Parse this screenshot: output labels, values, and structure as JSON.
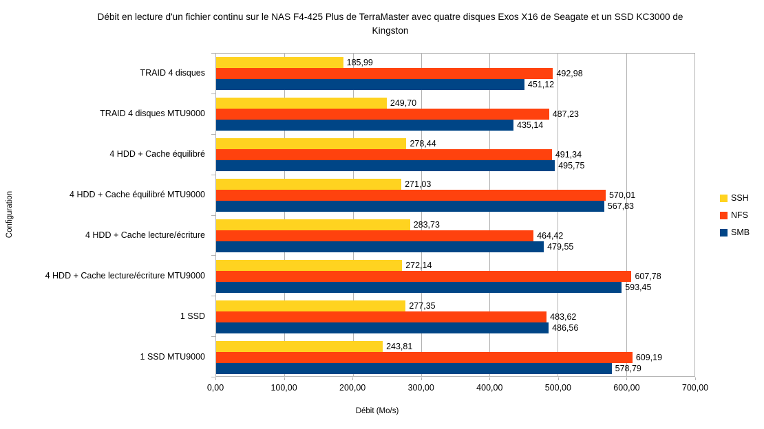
{
  "chart_data": {
    "type": "bar",
    "orientation": "horizontal",
    "title": "Débit en lecture d'un fichier continu sur le NAS F4-425 Plus de TerraMaster avec quatre disques Exos X16 de Seagate et un SSD KC3000 de Kingston",
    "xlabel": "Débit (Mo/s)",
    "ylabel": "Configuration",
    "xlim": [
      0,
      700
    ],
    "x_tick_values": [
      0,
      100,
      200,
      300,
      400,
      500,
      600,
      700
    ],
    "x_tick_labels": [
      "0,00",
      "100,00",
      "200,00",
      "300,00",
      "400,00",
      "500,00",
      "600,00",
      "700,00"
    ],
    "grid": true,
    "legend_position": "right",
    "categories": [
      "TRAID 4 disques",
      "TRAID 4 disques MTU9000",
      "4 HDD + Cache équilibré",
      "4 HDD + Cache équilibré MTU9000",
      "4 HDD + Cache lecture/écriture",
      "4 HDD + Cache lecture/écriture  MTU9000",
      "1 SSD",
      "1 SSD MTU9000"
    ],
    "series": [
      {
        "name": "SSH",
        "color": "#FFD320",
        "values": [
          185.99,
          249.7,
          278.44,
          271.03,
          283.73,
          272.14,
          277.35,
          243.81
        ],
        "labels": [
          "185,99",
          "249,70",
          "278,44",
          "271,03",
          "283,73",
          "272,14",
          "277,35",
          "243,81"
        ]
      },
      {
        "name": "NFS",
        "color": "#FF420E",
        "values": [
          492.98,
          487.23,
          491.34,
          570.01,
          464.42,
          607.78,
          483.62,
          609.19
        ],
        "labels": [
          "492,98",
          "487,23",
          "491,34",
          "570,01",
          "464,42",
          "607,78",
          "483,62",
          "609,19"
        ]
      },
      {
        "name": "SMB",
        "color": "#004586",
        "values": [
          451.12,
          435.14,
          495.75,
          567.83,
          479.55,
          593.45,
          486.56,
          578.79
        ],
        "labels": [
          "451,12",
          "435,14",
          "495,75",
          "567,83",
          "479,55",
          "593,45",
          "486,56",
          "578,79"
        ]
      }
    ]
  },
  "colors": {
    "background": "#FFFFFF",
    "gridline": "#B3B3B3",
    "plot_border": "#B3B3B3",
    "text": "#000000"
  }
}
